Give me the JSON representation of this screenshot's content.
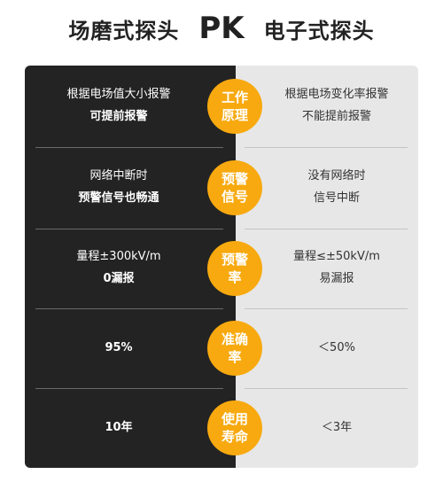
{
  "title": {
    "left": "场磨式探头",
    "vs": "PK",
    "right": "电子式探头"
  },
  "rows": [
    {
      "badge": [
        "工作",
        "原理"
      ],
      "left": [
        "根据电场值大小报警",
        "可提前报警"
      ],
      "right": [
        "根据电场变化率报警",
        "不能提前报警"
      ]
    },
    {
      "badge": [
        "预警",
        "信号"
      ],
      "left": [
        "网络中断时",
        "预警信号也畅通"
      ],
      "right": [
        "没有网络时",
        "信号中断"
      ]
    },
    {
      "badge": [
        "预警",
        "率"
      ],
      "left": [
        "量程±300kV/m",
        "0漏报"
      ],
      "right": [
        "量程≤±50kV/m",
        "易漏报"
      ]
    },
    {
      "badge": [
        "准确",
        "率"
      ],
      "left": [
        "95%"
      ],
      "right": [
        "＜50%"
      ]
    },
    {
      "badge": [
        "使用",
        "寿命"
      ],
      "left": [
        "10年"
      ],
      "right": [
        "＜3年"
      ]
    }
  ],
  "colors": {
    "left_panel": "#232323",
    "right_panel": "#e7e7e7",
    "badge": "#f7a90f"
  }
}
